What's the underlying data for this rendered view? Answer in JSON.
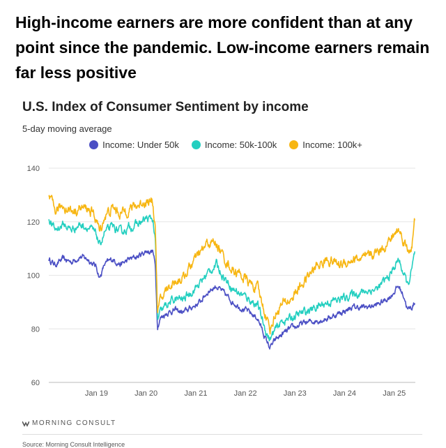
{
  "headline": "High-income earners are more confident than at any point since the pandemic. Low-income earners remain far less positive",
  "brand": {
    "name": "MORNING CONSULT",
    "logo_icon": "morning-consult-logo-icon"
  },
  "source": "Source: Morning Consult Intelligence",
  "chart_data": {
    "type": "line",
    "title": "U.S. Index of Consumer Sentiment by income",
    "subtitle": "5-day moving average",
    "xlabel": "",
    "ylabel": "",
    "ylim": [
      60,
      140
    ],
    "yticks": [
      60,
      80,
      100,
      120,
      140
    ],
    "xlim": [
      "2018-01-15",
      "2025-06-05"
    ],
    "xticks": [
      {
        "date": "2019-01-01",
        "label": "Jan 19"
      },
      {
        "date": "2020-01-01",
        "label": "Jan 20"
      },
      {
        "date": "2021-01-01",
        "label": "Jan 21"
      },
      {
        "date": "2022-01-01",
        "label": "Jan 22"
      },
      {
        "date": "2023-01-01",
        "label": "Jan 23"
      },
      {
        "date": "2024-01-01",
        "label": "Jan 24"
      },
      {
        "date": "2025-01-01",
        "label": "Jan 25"
      }
    ],
    "grid": "horizontal",
    "legend_position": "top",
    "series": [
      {
        "name": "Income: Under 50k",
        "color": "#4b4fc4",
        "points": [
          [
            "2018-01-15",
            106
          ],
          [
            "2018-03-01",
            104
          ],
          [
            "2018-05-01",
            106
          ],
          [
            "2018-07-01",
            105
          ],
          [
            "2018-09-01",
            107
          ],
          [
            "2018-11-01",
            106
          ],
          [
            "2019-01-01",
            103
          ],
          [
            "2019-01-25",
            99
          ],
          [
            "2019-03-01",
            104
          ],
          [
            "2019-05-01",
            106
          ],
          [
            "2019-07-01",
            104
          ],
          [
            "2019-09-01",
            106
          ],
          [
            "2019-11-01",
            107
          ],
          [
            "2020-01-01",
            109
          ],
          [
            "2020-02-20",
            109
          ],
          [
            "2020-03-10",
            103
          ],
          [
            "2020-03-25",
            81
          ],
          [
            "2020-04-15",
            84
          ],
          [
            "2020-06-01",
            86
          ],
          [
            "2020-08-01",
            87
          ],
          [
            "2020-10-01",
            86
          ],
          [
            "2020-12-01",
            88
          ],
          [
            "2021-02-01",
            90
          ],
          [
            "2021-04-01",
            94
          ],
          [
            "2021-06-01",
            96
          ],
          [
            "2021-08-01",
            93
          ],
          [
            "2021-10-01",
            90
          ],
          [
            "2021-12-01",
            88
          ],
          [
            "2022-02-01",
            86
          ],
          [
            "2022-04-01",
            84
          ],
          [
            "2022-06-01",
            76
          ],
          [
            "2022-07-01",
            73
          ],
          [
            "2022-08-15",
            76
          ],
          [
            "2022-10-01",
            78
          ],
          [
            "2022-12-01",
            80
          ],
          [
            "2023-03-01",
            82
          ],
          [
            "2023-06-01",
            83
          ],
          [
            "2023-09-01",
            84
          ],
          [
            "2023-12-01",
            86
          ],
          [
            "2024-03-01",
            88
          ],
          [
            "2024-06-01",
            88
          ],
          [
            "2024-09-01",
            89
          ],
          [
            "2024-12-01",
            92
          ],
          [
            "2025-02-01",
            96
          ],
          [
            "2025-03-15",
            92
          ],
          [
            "2025-04-10",
            87
          ],
          [
            "2025-05-10",
            88
          ],
          [
            "2025-06-01",
            90
          ]
        ]
      },
      {
        "name": "Income: 50k-100k",
        "color": "#24cfc0",
        "points": [
          [
            "2018-01-15",
            121
          ],
          [
            "2018-03-01",
            117
          ],
          [
            "2018-05-01",
            119
          ],
          [
            "2018-07-01",
            117
          ],
          [
            "2018-09-01",
            119
          ],
          [
            "2018-11-01",
            118
          ],
          [
            "2019-01-01",
            115
          ],
          [
            "2019-01-25",
            111
          ],
          [
            "2019-03-01",
            116
          ],
          [
            "2019-05-01",
            118
          ],
          [
            "2019-07-01",
            116
          ],
          [
            "2019-09-01",
            118
          ],
          [
            "2019-11-01",
            119
          ],
          [
            "2020-01-01",
            121
          ],
          [
            "2020-02-20",
            121
          ],
          [
            "2020-03-10",
            112
          ],
          [
            "2020-03-25",
            83
          ],
          [
            "2020-04-15",
            86
          ],
          [
            "2020-06-01",
            89
          ],
          [
            "2020-08-01",
            91
          ],
          [
            "2020-10-01",
            91
          ],
          [
            "2020-12-01",
            94
          ],
          [
            "2021-02-01",
            97
          ],
          [
            "2021-04-01",
            101
          ],
          [
            "2021-06-01",
            104
          ],
          [
            "2021-08-01",
            99
          ],
          [
            "2021-10-01",
            95
          ],
          [
            "2021-12-01",
            93
          ],
          [
            "2022-02-01",
            91
          ],
          [
            "2022-04-01",
            89
          ],
          [
            "2022-06-01",
            79
          ],
          [
            "2022-07-01",
            76
          ],
          [
            "2022-08-15",
            80
          ],
          [
            "2022-10-01",
            83
          ],
          [
            "2022-12-01",
            84
          ],
          [
            "2023-03-01",
            86
          ],
          [
            "2023-06-01",
            88
          ],
          [
            "2023-09-01",
            90
          ],
          [
            "2023-12-01",
            91
          ],
          [
            "2024-03-01",
            93
          ],
          [
            "2024-06-01",
            94
          ],
          [
            "2024-09-01",
            95
          ],
          [
            "2024-12-01",
            100
          ],
          [
            "2025-02-01",
            106
          ],
          [
            "2025-03-15",
            100
          ],
          [
            "2025-04-10",
            96
          ],
          [
            "2025-05-10",
            102
          ],
          [
            "2025-06-01",
            108
          ]
        ]
      },
      {
        "name": "Income: 100k+",
        "color": "#f7b612",
        "points": [
          [
            "2018-01-15",
            129
          ],
          [
            "2018-03-01",
            124
          ],
          [
            "2018-05-01",
            126
          ],
          [
            "2018-07-01",
            124
          ],
          [
            "2018-09-01",
            125
          ],
          [
            "2018-11-01",
            125
          ],
          [
            "2019-01-01",
            121
          ],
          [
            "2019-01-25",
            116
          ],
          [
            "2019-03-01",
            122
          ],
          [
            "2019-05-01",
            125
          ],
          [
            "2019-07-01",
            123
          ],
          [
            "2019-09-01",
            125
          ],
          [
            "2019-11-01",
            126
          ],
          [
            "2020-01-01",
            128
          ],
          [
            "2020-02-20",
            127
          ],
          [
            "2020-03-10",
            118
          ],
          [
            "2020-03-25",
            86
          ],
          [
            "2020-04-15",
            90
          ],
          [
            "2020-06-01",
            95
          ],
          [
            "2020-08-01",
            98
          ],
          [
            "2020-10-01",
            99
          ],
          [
            "2020-12-01",
            104
          ],
          [
            "2021-02-01",
            108
          ],
          [
            "2021-04-01",
            112
          ],
          [
            "2021-06-01",
            112
          ],
          [
            "2021-08-01",
            106
          ],
          [
            "2021-10-01",
            102
          ],
          [
            "2021-12-01",
            100
          ],
          [
            "2022-02-01",
            97
          ],
          [
            "2022-04-01",
            95
          ],
          [
            "2022-06-01",
            85
          ],
          [
            "2022-07-01",
            80
          ],
          [
            "2022-08-15",
            86
          ],
          [
            "2022-10-01",
            89
          ],
          [
            "2022-12-01",
            91
          ],
          [
            "2023-03-01",
            97
          ],
          [
            "2023-06-01",
            103
          ],
          [
            "2023-09-01",
            106
          ],
          [
            "2023-12-01",
            104
          ],
          [
            "2024-03-01",
            106
          ],
          [
            "2024-06-01",
            106
          ],
          [
            "2024-09-01",
            109
          ],
          [
            "2024-12-01",
            113
          ],
          [
            "2025-02-01",
            117
          ],
          [
            "2025-03-15",
            113
          ],
          [
            "2025-04-10",
            109
          ],
          [
            "2025-05-10",
            111
          ],
          [
            "2025-06-01",
            120
          ]
        ]
      }
    ]
  }
}
